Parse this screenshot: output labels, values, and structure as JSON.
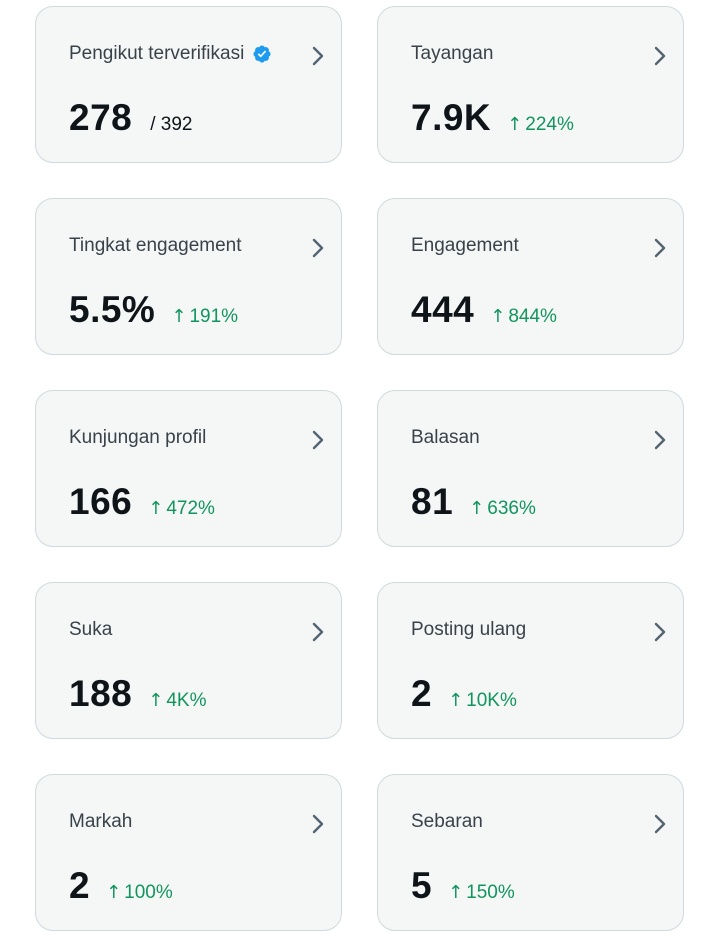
{
  "cards": [
    {
      "title": "Pengikut terverifikasi",
      "value": "278",
      "sub": "/ 392",
      "change": "",
      "verified_badge": true
    },
    {
      "title": "Tayangan",
      "value": "7.9K",
      "sub": "",
      "change": "224%"
    },
    {
      "title": "Tingkat engagement",
      "value": "5.5%",
      "sub": "",
      "change": "191%"
    },
    {
      "title": "Engagement",
      "value": "444",
      "sub": "",
      "change": "844%"
    },
    {
      "title": "Kunjungan profil",
      "value": "166",
      "sub": "",
      "change": "472%"
    },
    {
      "title": "Balasan",
      "value": "81",
      "sub": "",
      "change": "636%"
    },
    {
      "title": "Suka",
      "value": "188",
      "sub": "",
      "change": "4K%"
    },
    {
      "title": "Posting ulang",
      "value": "2",
      "sub": "",
      "change": "10K%"
    },
    {
      "title": "Markah",
      "value": "2",
      "sub": "",
      "change": "100%"
    },
    {
      "title": "Sebaran",
      "value": "5",
      "sub": "",
      "change": "150%"
    }
  ],
  "icons": {
    "chevron": "chevron-right-icon",
    "verified": "verified-badge-icon",
    "arrow": "arrow-up-icon"
  },
  "colors": {
    "card_bg": "#f5f7f7",
    "card_border": "#cfd9de",
    "positive": "#12945f",
    "verified": "#1d9bf0",
    "chevron": "#536471"
  }
}
